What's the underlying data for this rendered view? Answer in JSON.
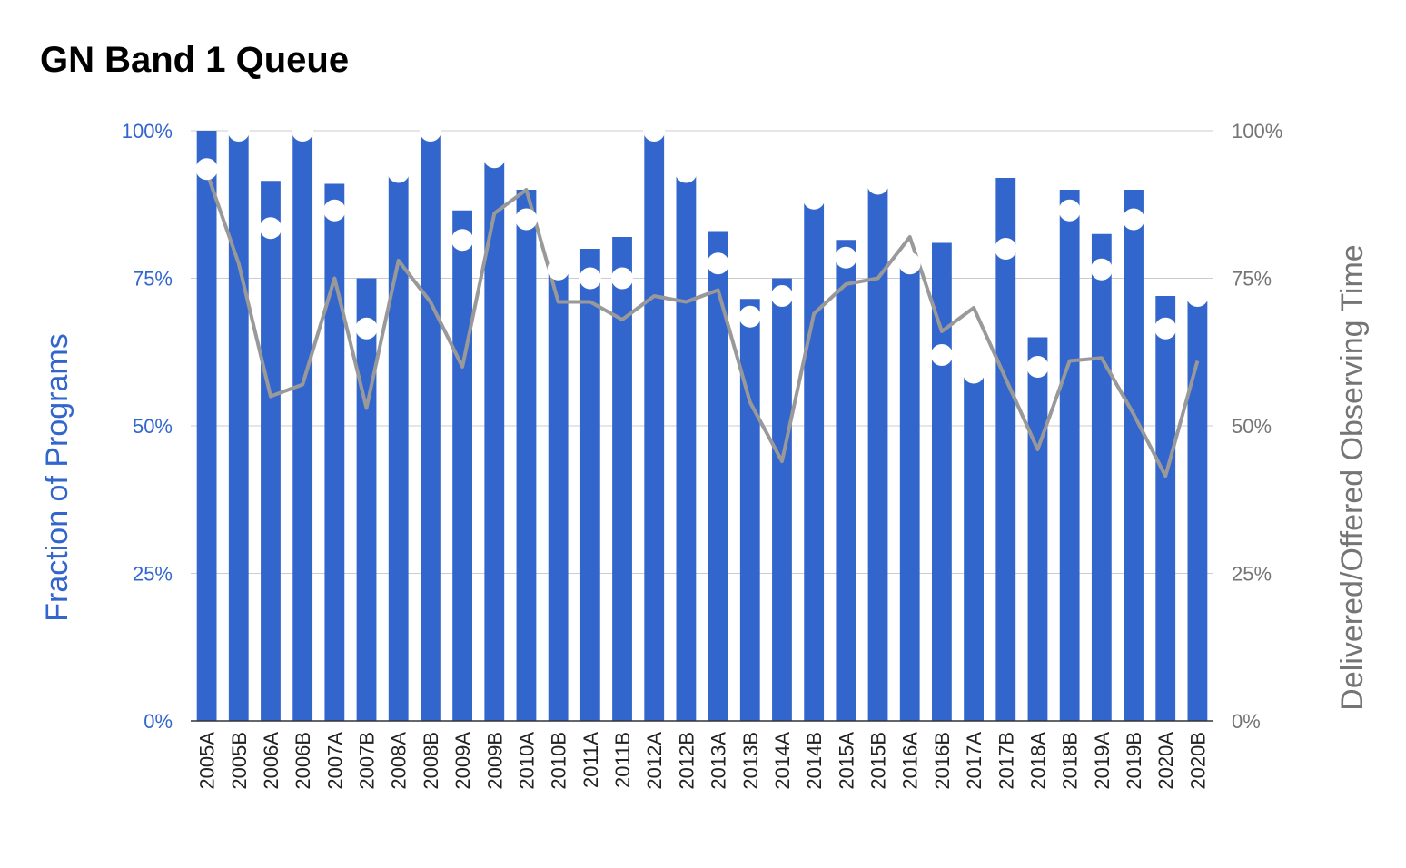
{
  "chart_data": {
    "type": "bar",
    "title": "GN Band 1 Queue",
    "ylabel": "Fraction of Programs",
    "y2label": "Delivered/Offered Observing Time",
    "ylim": [
      0,
      100
    ],
    "y2lim": [
      0,
      100
    ],
    "yticks": [
      "0%",
      "25%",
      "50%",
      "75%",
      "100%"
    ],
    "y2ticks": [
      "0%",
      "25%",
      "50%",
      "75%",
      "100%"
    ],
    "grid": true,
    "categories": [
      "2005A",
      "2005B",
      "2006A",
      "2006B",
      "2007A",
      "2007B",
      "2008A",
      "2008B",
      "2009A",
      "2009B",
      "2010A",
      "2010B",
      "2011A",
      "2011B",
      "2012A",
      "2012B",
      "2013A",
      "2013B",
      "2014A",
      "2014B",
      "2015A",
      "2015B",
      "2016A",
      "2016B",
      "2017A",
      "2017B",
      "2018A",
      "2018B",
      "2019A",
      "2019B",
      "2020A",
      "2020B"
    ],
    "series": [
      {
        "kind": "bar",
        "axis": "left",
        "color": "#3366cc",
        "values": [
          100,
          100,
          91.5,
          100,
          91,
          75,
          93,
          100,
          86.5,
          96,
          90,
          76.5,
          80,
          82,
          100,
          93,
          83,
          71.5,
          75,
          88.5,
          81.5,
          91,
          77.5,
          81,
          59,
          92,
          65,
          90,
          82.5,
          90,
          72,
          72
        ]
      },
      {
        "kind": "point",
        "axis": "left",
        "color": "#ffffff",
        "values": [
          93.5,
          100,
          83.5,
          100,
          86.5,
          66.5,
          93,
          100,
          81.5,
          95.5,
          85,
          76.5,
          75,
          75,
          100,
          93,
          77.5,
          68.5,
          72,
          88.5,
          78.5,
          91,
          77.5,
          62,
          59,
          80,
          60,
          86.5,
          76.5,
          85,
          66.5,
          72
        ]
      },
      {
        "kind": "line",
        "axis": "right",
        "color": "#999999",
        "values": [
          93,
          77.5,
          55,
          57,
          75,
          53,
          78,
          71,
          60,
          86,
          90,
          71,
          71,
          68,
          72,
          71,
          73,
          54,
          44,
          69,
          74,
          75,
          82,
          66,
          70,
          58,
          46,
          61,
          61.5,
          52,
          41.5,
          61
        ]
      }
    ]
  }
}
